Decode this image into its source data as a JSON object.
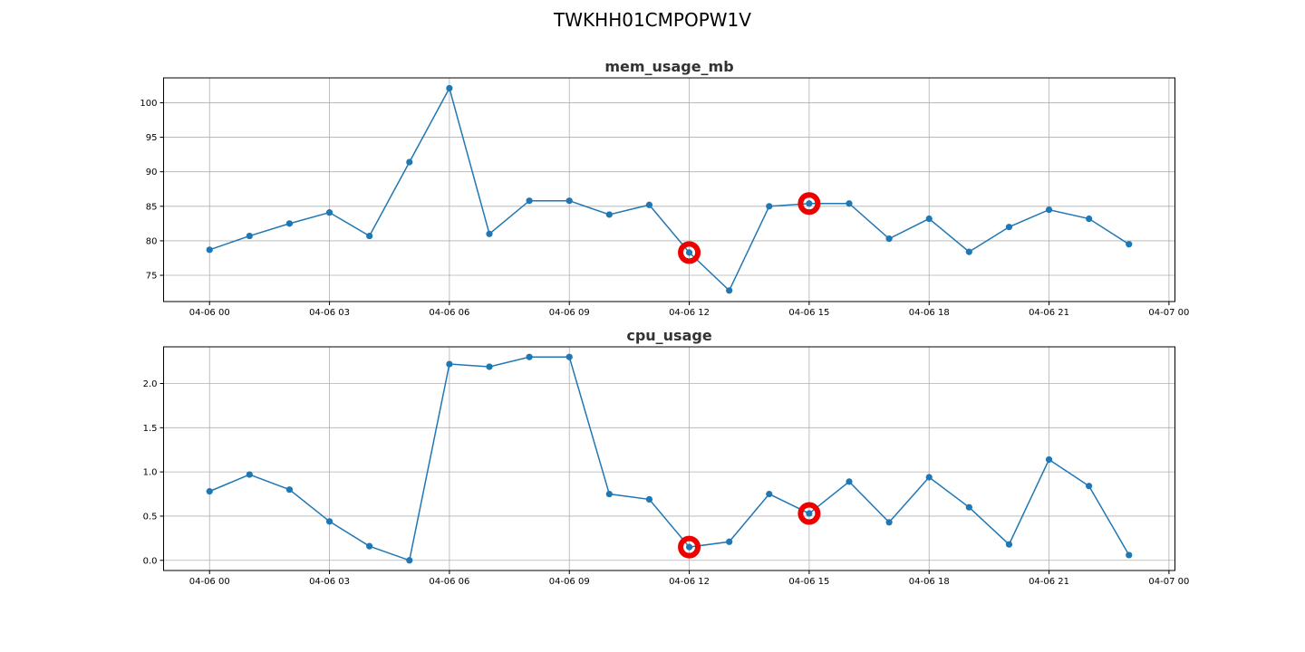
{
  "figure_title": "TWKHH01CMPOPW1V",
  "chart_data": [
    {
      "type": "line",
      "title": "mem_usage_mb",
      "xlabel": "",
      "ylabel": "",
      "x_ticks": [
        "04-06 00",
        "04-06 03",
        "04-06 06",
        "04-06 09",
        "04-06 12",
        "04-06 15",
        "04-06 18",
        "04-06 21",
        "04-07 00"
      ],
      "y_ticks": [
        "75",
        "80",
        "85",
        "90",
        "95",
        "100"
      ],
      "ylim": [
        71.2,
        103.6
      ],
      "xlim_hours": [
        -1.15,
        24.15
      ],
      "grid": true,
      "series": [
        {
          "color": "#1f77b4",
          "x": [
            "04-06 00:00",
            "04-06 01:00",
            "04-06 02:00",
            "04-06 03:00",
            "04-06 04:00",
            "04-06 05:00",
            "04-06 06:00",
            "04-06 07:00",
            "04-06 08:00",
            "04-06 09:00",
            "04-06 10:00",
            "04-06 11:00",
            "04-06 12:00",
            "04-06 13:00",
            "04-06 14:00",
            "04-06 15:00",
            "04-06 16:00",
            "04-06 17:00",
            "04-06 18:00",
            "04-06 19:00",
            "04-06 20:00",
            "04-06 21:00",
            "04-06 22:00",
            "04-06 23:00"
          ],
          "values": [
            78.7,
            80.7,
            82.5,
            84.1,
            80.7,
            91.4,
            102.1,
            81.0,
            85.8,
            85.8,
            83.8,
            85.2,
            78.3,
            72.8,
            85.0,
            85.4,
            85.4,
            80.3,
            83.2,
            78.4,
            82.0,
            84.5,
            83.2,
            79.5
          ]
        }
      ],
      "highlighted": [
        {
          "x": "04-06 12:00",
          "value": 78.3,
          "color": "#ee0000"
        },
        {
          "x": "04-06 15:00",
          "value": 85.4,
          "color": "#ee0000"
        }
      ]
    },
    {
      "type": "line",
      "title": "cpu_usage",
      "xlabel": "",
      "ylabel": "",
      "x_ticks": [
        "04-06 00",
        "04-06 03",
        "04-06 06",
        "04-06 09",
        "04-06 12",
        "04-06 15",
        "04-06 18",
        "04-06 21",
        "04-07 00"
      ],
      "y_ticks": [
        "0.0",
        "0.5",
        "1.0",
        "1.5",
        "2.0"
      ],
      "ylim": [
        -0.115,
        2.415
      ],
      "xlim_hours": [
        -1.15,
        24.15
      ],
      "grid": true,
      "series": [
        {
          "color": "#1f77b4",
          "x": [
            "04-06 00:00",
            "04-06 01:00",
            "04-06 02:00",
            "04-06 03:00",
            "04-06 04:00",
            "04-06 05:00",
            "04-06 06:00",
            "04-06 07:00",
            "04-06 08:00",
            "04-06 09:00",
            "04-06 10:00",
            "04-06 11:00",
            "04-06 12:00",
            "04-06 13:00",
            "04-06 14:00",
            "04-06 15:00",
            "04-06 16:00",
            "04-06 17:00",
            "04-06 18:00",
            "04-06 19:00",
            "04-06 20:00",
            "04-06 21:00",
            "04-06 22:00",
            "04-06 23:00"
          ],
          "values": [
            0.78,
            0.97,
            0.8,
            0.44,
            0.16,
            0.0,
            2.22,
            2.19,
            2.3,
            2.3,
            0.75,
            0.69,
            0.15,
            0.21,
            0.75,
            0.53,
            0.89,
            0.43,
            0.94,
            0.6,
            0.18,
            1.14,
            0.84,
            0.06
          ]
        }
      ],
      "highlighted": [
        {
          "x": "04-06 12:00",
          "value": 0.15,
          "color": "#ee0000"
        },
        {
          "x": "04-06 15:00",
          "value": 0.53,
          "color": "#ee0000"
        }
      ]
    }
  ]
}
